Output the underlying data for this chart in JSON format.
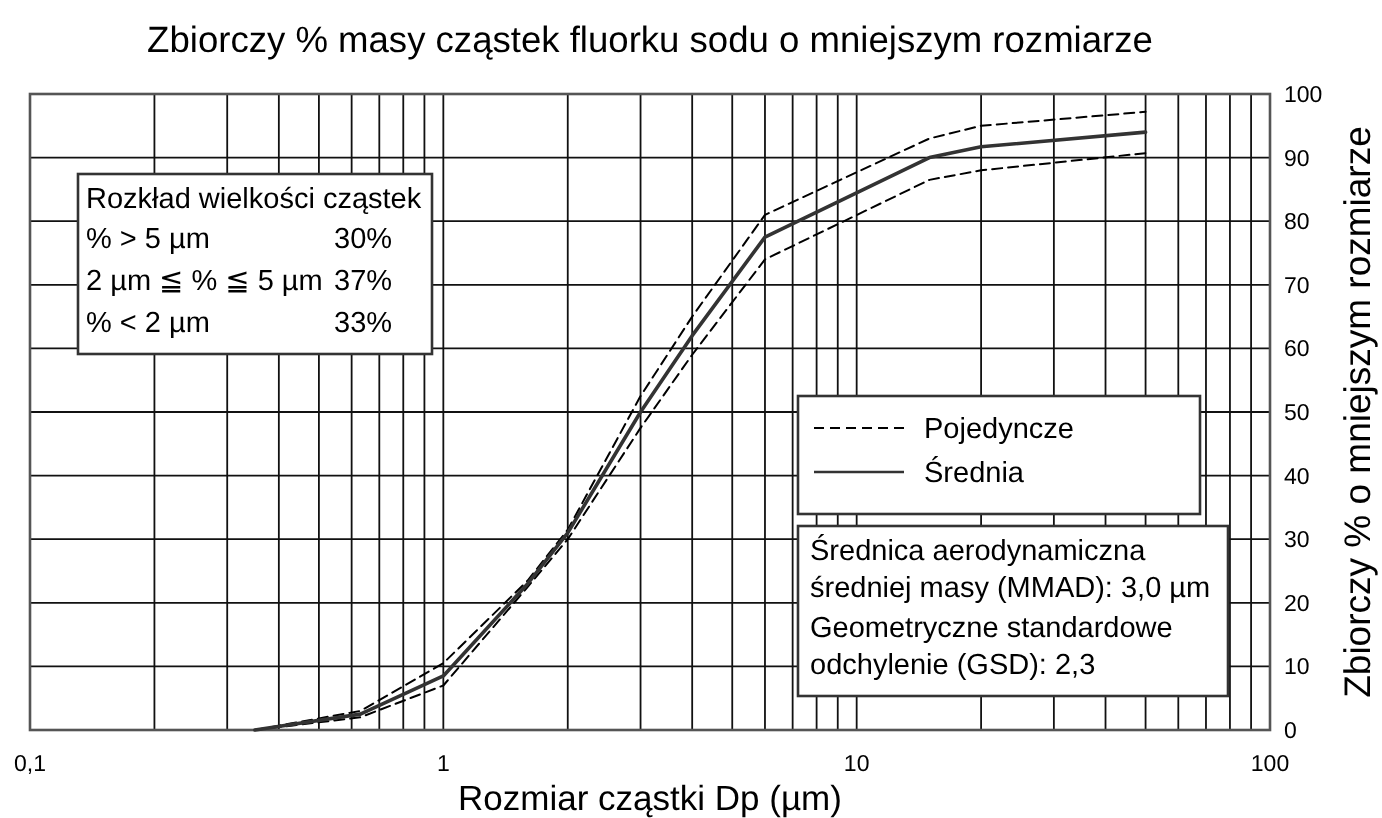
{
  "chart_data": {
    "type": "line",
    "title": "Zbiorczy % masy cząstek fluorku sodu o mniejszym rozmiarze",
    "xlabel": "Rozmiar cząstki Dp (µm)",
    "ylabel": "Zbiorczy % o mniejszym rozmiarze",
    "log": "x",
    "xlim": [
      0.1,
      100
    ],
    "xticks": [
      {
        "value": 0.1,
        "label": "0,1"
      },
      1,
      10,
      100
    ],
    "ylim": [
      0,
      100
    ],
    "yticks": [
      0,
      10,
      20,
      30,
      40,
      50,
      60,
      70,
      80,
      90,
      100
    ],
    "grid": true,
    "legend": "right",
    "x": [
      0.35,
      0.63,
      1,
      1.6,
      2,
      3,
      4,
      6,
      15,
      20,
      50
    ],
    "series": [
      {
        "name": "Pojedyncze",
        "color": "#000000",
        "line_style": "dashed",
        "values": [
          0,
          3,
          10.5,
          23.5,
          31.5,
          52.5,
          65,
          81,
          93,
          95,
          97.2
        ]
      },
      {
        "color": "#000000",
        "line_style": "dashed",
        "values": [
          0,
          2,
          7,
          22.5,
          30,
          47.5,
          59,
          74,
          86.5,
          88,
          90.7
        ]
      },
      {
        "name": "Średnia",
        "color": "#333333",
        "line_style": "solid",
        "values": [
          0,
          2.5,
          8.5,
          23,
          31,
          50,
          62,
          77.5,
          90,
          91.7,
          94
        ]
      }
    ],
    "annotations": [
      "Rozkład wielkości cząstek",
      "% > 5 µm",
      "30%",
      "2 µm ≦ % ≦ 5 µm",
      "37%",
      "% < 2 µm",
      "33%",
      "Średnica aerodynamiczna",
      "średniej masy (MMAD): 3,0 µm",
      "Geometryczne standardowe",
      "odchylenie (GSD): 2,3"
    ]
  }
}
